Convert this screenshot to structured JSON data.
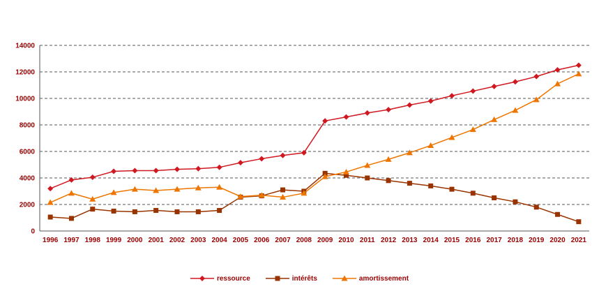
{
  "figure": {
    "background": "#ffffff",
    "axis_label_color": "#990000",
    "grid_color": "#555555",
    "axis_line_color": "#555555"
  },
  "chart_data": {
    "type": "line",
    "title": "",
    "xlabel": "",
    "ylabel": "",
    "x": [
      1996,
      1997,
      1998,
      1999,
      2000,
      2001,
      2002,
      2003,
      2004,
      2005,
      2006,
      2007,
      2008,
      2009,
      2010,
      2011,
      2012,
      2013,
      2014,
      2015,
      2016,
      2017,
      2018,
      2019,
      2020,
      2021
    ],
    "ylim": [
      0,
      14000
    ],
    "ytick_step": 2000,
    "grid": "horizontal-dashed",
    "legend_position": "bottom-center",
    "series": [
      {
        "name": "ressource",
        "color": "#D01820",
        "marker": "diamond",
        "values": [
          3200,
          3850,
          4050,
          4500,
          4550,
          4550,
          4650,
          4700,
          4800,
          5150,
          5450,
          5700,
          5900,
          8300,
          8600,
          8900,
          9150,
          9500,
          9800,
          10200,
          10550,
          10900,
          11250,
          11650,
          12150,
          12500
        ]
      },
      {
        "name": "intérêts",
        "color": "#993300",
        "marker": "square",
        "values": [
          1050,
          950,
          1650,
          1500,
          1450,
          1550,
          1450,
          1450,
          1550,
          2550,
          2650,
          3100,
          3000,
          4350,
          4200,
          4000,
          3800,
          3600,
          3400,
          3150,
          2850,
          2500,
          2200,
          1800,
          1250,
          700
        ]
      },
      {
        "name": "amortissement",
        "color": "#EE7600",
        "marker": "triangle",
        "values": [
          2150,
          2850,
          2400,
          2900,
          3150,
          3050,
          3150,
          3250,
          3300,
          2600,
          2700,
          2550,
          2850,
          4100,
          4450,
          4950,
          5400,
          5900,
          6450,
          7050,
          7650,
          8400,
          9100,
          9900,
          11100,
          11850
        ]
      }
    ]
  }
}
